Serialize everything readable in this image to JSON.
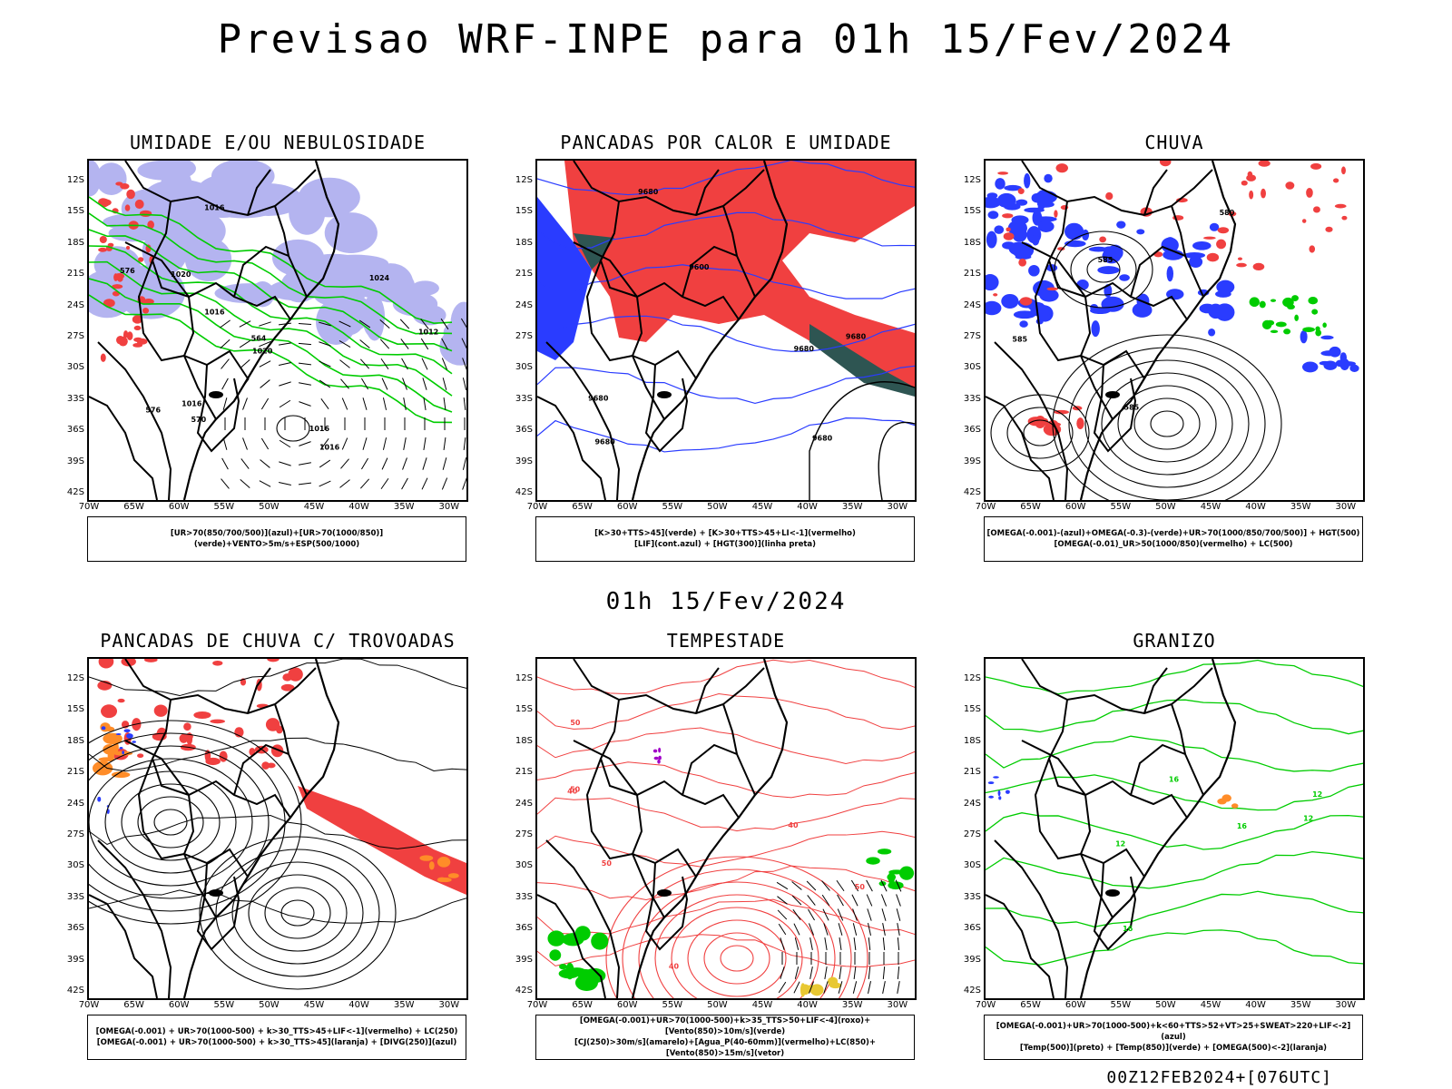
{
  "main_title": "Previsao WRF-INPE  para 01h 15/Fev/2024",
  "mid_title": "01h 15/Fev/2024",
  "footer": "00Z12FEB2024+[076UTC]",
  "lat_ticks": [
    "12S",
    "15S",
    "18S",
    "21S",
    "24S",
    "27S",
    "30S",
    "33S",
    "36S",
    "39S",
    "42S"
  ],
  "lon_ticks": [
    "70W",
    "65W",
    "60W",
    "55W",
    "50W",
    "45W",
    "40W",
    "35W",
    "30W"
  ],
  "colors": {
    "red": "#f04040",
    "green": "#00cc00",
    "blue": "#2a3cff",
    "lavender": "#b4b4f0",
    "dark_teal": "#2e5552",
    "orange": "#ff8c28",
    "yellow": "#e8c832",
    "purple": "#a000c8"
  },
  "panels": [
    {
      "title": "UMIDADE E/OU NEBULOSIDADE",
      "legend": [
        "[UR>70(850/700/500)](azul)+[UR>70(1000/850)](verde)+VENTO>5m/s+ESP(500/1000)"
      ],
      "contour_labels": [
        "1016",
        "1016",
        "1016",
        "1020",
        "1024",
        "1016",
        "1012",
        "1016",
        "1020",
        "570",
        "576",
        "576",
        "564"
      ]
    },
    {
      "title": "PANCADAS POR CALOR E UMIDADE",
      "legend": [
        "[K>30+TTS>45](verde) + [K>30+TTS>45+LI<-1](vermelho)",
        "[LIF](cont.azul) + [HGT(300)](linha preta)"
      ],
      "contour_labels": [
        "9680",
        "9680",
        "9680",
        "9680",
        "9600",
        "9680",
        "9680"
      ]
    },
    {
      "title": "CHUVA",
      "legend": [
        "[OMEGA(-0.001)-(azul)+OMEGA(-0.3)-(verde)+UR>70(1000/850/700/500)] + HGT(500)",
        "[OMEGA(-0.01)_UR>50(1000/850)(vermelho) + LC(500)"
      ],
      "contour_labels": [
        "585",
        "585",
        "585",
        "580"
      ]
    },
    {
      "title": "PANCADAS DE CHUVA C/ TROVOADAS",
      "legend": [
        "[OMEGA(-0.001) + UR>70(1000-500) + k>30_TTS>45+LIF<-1](vermelho) + LC(250)",
        "[OMEGA(-0.001) + UR>70(1000-500) + k>30_TTS>45](laranja) + [DIVG(250)](azul)"
      ],
      "contour_labels": []
    },
    {
      "title": "TEMPESTADE",
      "legend": [
        "[OMEGA(-0.001)+UR>70(1000-500)+k>35_TTS>50+LIF<-4](roxo)+[Vento(850)>10m/s](verde)",
        "[CJ(250)>30m/s](amarelo)+[Agua_P(40-60mm)](vermelho)+LC(850)+[Vento(850)>15m/s](vetor)"
      ],
      "contour_labels": [
        "50",
        "50",
        "40",
        "40",
        "50",
        "50",
        "40"
      ]
    },
    {
      "title": "GRANIZO",
      "legend": [
        "[OMEGA(-0.001)+UR>70(1000-500)+k<60+TTS>52+VT>25+SWEAT>220+LIF<-2](azul)",
        "[Temp(500)](preto) + [Temp(850)](verde) + [OMEGA(500)<-2](laranja)"
      ],
      "contour_labels": [
        "16",
        "16",
        "12",
        "12",
        "12",
        "16"
      ]
    }
  ]
}
